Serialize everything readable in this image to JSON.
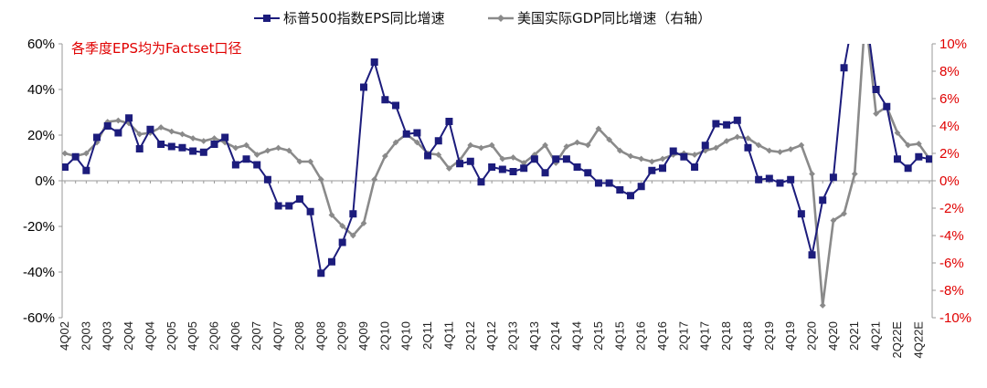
{
  "chart_data": {
    "type": "line",
    "annotation": "各季度EPS均为Factset口径",
    "colors": {
      "eps": "#1c1c7c",
      "gdp": "#8a8a8a",
      "left_axis_text": "#000000",
      "right_axis_text": "#e00000",
      "annotation": "#e00000"
    },
    "left_axis": {
      "ylim": [
        -60,
        60
      ],
      "ticks": [
        60,
        40,
        20,
        0,
        -20,
        -40,
        -60
      ],
      "tick_labels": [
        "60%",
        "40%",
        "20%",
        "0%",
        "-20%",
        "-40%",
        "-60%"
      ]
    },
    "right_axis": {
      "ylim": [
        -10,
        10
      ],
      "ticks": [
        10,
        8,
        6,
        4,
        2,
        0,
        -2,
        -4,
        -6,
        -8,
        -10
      ],
      "tick_labels": [
        "10%",
        "8%",
        "6%",
        "4%",
        "2%",
        "0%",
        "-2%",
        "-4%",
        "-6%",
        "-8%",
        "-10%"
      ]
    },
    "x_tick_labels": [
      "4Q02",
      "2Q03",
      "4Q03",
      "2Q04",
      "4Q04",
      "2Q05",
      "4Q05",
      "2Q06",
      "4Q06",
      "2Q07",
      "4Q07",
      "2Q08",
      "4Q08",
      "2Q09",
      "4Q09",
      "2Q10",
      "4Q10",
      "2Q11",
      "4Q11",
      "2Q12",
      "4Q12",
      "2Q13",
      "4Q13",
      "2Q14",
      "4Q14",
      "2Q15",
      "4Q15",
      "2Q16",
      "4Q16",
      "2Q17",
      "4Q17",
      "2Q18",
      "4Q18",
      "2Q19",
      "4Q19",
      "2Q20",
      "4Q20",
      "2Q21",
      "4Q21",
      "2Q22E",
      "4Q22E"
    ],
    "series": [
      {
        "name": "标普500指数EPS同比增速",
        "axis": "left",
        "marker": "square",
        "values": [
          6,
          10.5,
          4.5,
          19,
          24,
          21,
          27.5,
          14,
          22.5,
          16,
          15,
          14.5,
          13,
          12.5,
          16,
          19,
          7,
          9.5,
          7,
          0.5,
          -11,
          -11,
          -8,
          -13.5,
          -40.5,
          -35.5,
          -27,
          -14.5,
          41,
          52,
          35.5,
          33,
          20.5,
          21,
          11,
          17.5,
          26,
          7.5,
          8.5,
          -0.5,
          6,
          5,
          4,
          5.5,
          9.5,
          3.5,
          9.5,
          9.5,
          6,
          3.5,
          -1,
          -1,
          -4,
          -6.5,
          -2.5,
          4.5,
          5.5,
          13,
          10.5,
          6,
          15.5,
          25,
          24.5,
          26.5,
          14.5,
          0.5,
          1,
          -1,
          0.5,
          -14.5,
          -32.5,
          -8.5,
          1.5,
          49.5,
          75,
          75,
          40,
          32.5,
          9.5,
          5.5,
          10.5,
          9.5
        ]
      },
      {
        "name": "美国实际GDP同比增速（右轴）",
        "axis": "right",
        "marker": "diamond",
        "values": [
          2.0,
          1.8,
          2.0,
          2.8,
          4.3,
          4.4,
          4.2,
          3.4,
          3.5,
          3.9,
          3.6,
          3.4,
          3.1,
          2.9,
          3.1,
          2.8,
          2.4,
          2.6,
          1.9,
          2.2,
          2.4,
          2.2,
          1.4,
          1.4,
          0.1,
          -2.5,
          -3.3,
          -4.0,
          -3.1,
          0.1,
          1.8,
          2.8,
          3.4,
          2.8,
          2.0,
          1.9,
          0.9,
          1.5,
          2.6,
          2.4,
          2.6,
          1.6,
          1.7,
          1.3,
          1.9,
          2.6,
          1.3,
          2.5,
          2.8,
          2.6,
          3.8,
          3.0,
          2.2,
          1.8,
          1.6,
          1.4,
          1.6,
          1.9,
          2.0,
          1.9,
          2.2,
          2.4,
          2.9,
          3.2,
          3.1,
          2.6,
          2.2,
          2.1,
          2.3,
          2.6,
          0.5,
          -9.1,
          -2.9,
          -2.4,
          0.5,
          12.2,
          4.9,
          5.4,
          3.5,
          2.6,
          2.7,
          1.6
        ]
      }
    ]
  }
}
